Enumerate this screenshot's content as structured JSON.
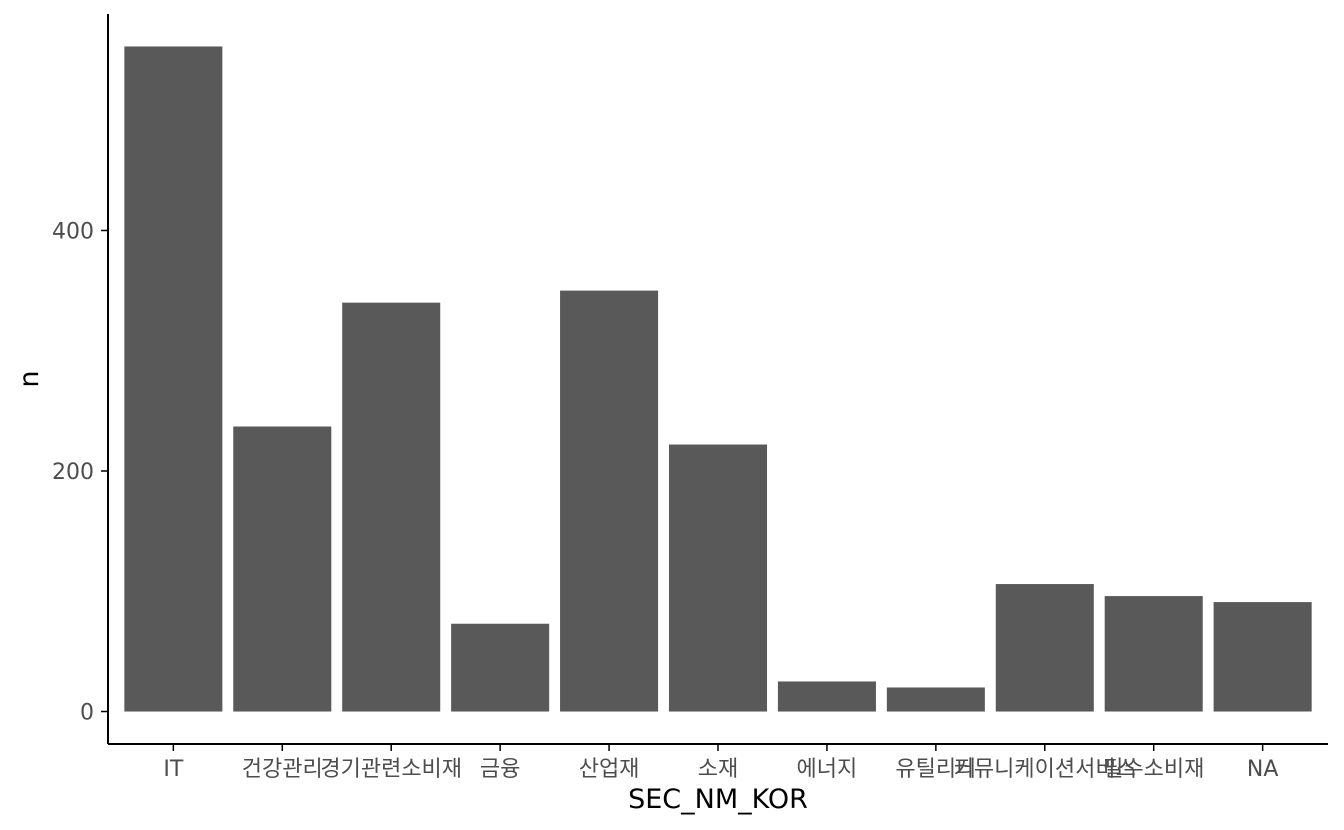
{
  "chart_data": {
    "type": "bar",
    "xlabel": "SEC_NM_KOR",
    "ylabel": "n",
    "categories": [
      "IT",
      "건강관리",
      "경기관련소비재",
      "금융",
      "산업재",
      "소재",
      "에너지",
      "유틸리티",
      "커뮤니케이션서비스",
      "필수소비재",
      "NA"
    ],
    "values": [
      553,
      237,
      340,
      73,
      350,
      222,
      25,
      20,
      106,
      96,
      91
    ],
    "ylim": [
      -27,
      580
    ],
    "yticks": [
      0,
      200,
      400
    ],
    "grid": false,
    "legend": "none",
    "bar_color": "#595959",
    "axis_color": "#000000",
    "tick_label_color": "#4d4d4d"
  }
}
